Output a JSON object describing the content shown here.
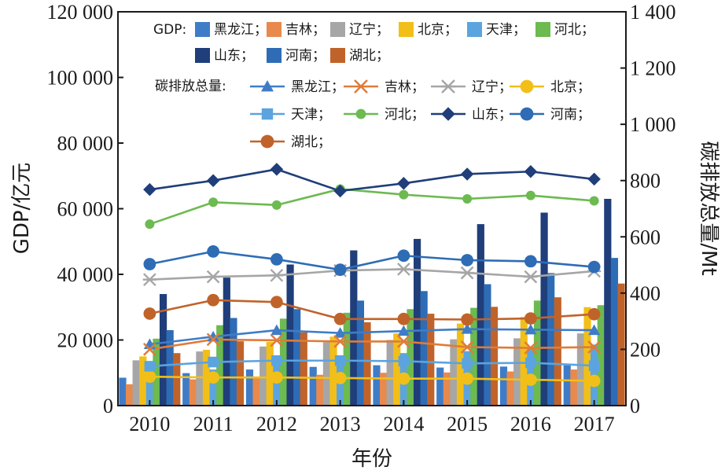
{
  "chart_data": {
    "type": "bar",
    "categories": [
      "2010",
      "2011",
      "2012",
      "2013",
      "2014",
      "2015",
      "2016",
      "2017"
    ],
    "xlabel": "年份",
    "ylabel": "GDP/亿元",
    "y2label": "碳排放总量/Mt",
    "ylim": [
      0,
      120000
    ],
    "y2lim": [
      0,
      1400
    ],
    "yticks": [
      {
        "value": 0,
        "label": "0"
      },
      {
        "value": 20000,
        "label": "20 000"
      },
      {
        "value": 40000,
        "label": "40 000"
      },
      {
        "value": 60000,
        "label": "60 000"
      },
      {
        "value": 80000,
        "label": "80 000"
      },
      {
        "value": 100000,
        "label": "100 000"
      },
      {
        "value": 120000,
        "label": "120 000"
      }
    ],
    "y2ticks": [
      {
        "value": 0,
        "label": "0"
      },
      {
        "value": 200,
        "label": "200"
      },
      {
        "value": 400,
        "label": "400"
      },
      {
        "value": 600,
        "label": "600"
      },
      {
        "value": 800,
        "label": "800"
      },
      {
        "value": 1000,
        "label": "1 000"
      },
      {
        "value": 1200,
        "label": "1 200"
      },
      {
        "value": 1400,
        "label": "1 400"
      }
    ],
    "legend_gdp_prefix": "GDP:",
    "legend_co2_prefix": "碳排放总量:",
    "grid": false,
    "bar_series": [
      {
        "name": "黑龙江；",
        "color": "#3f7cc8",
        "values": [
          8500,
          9900,
          11000,
          11800,
          12300,
          11600,
          11900,
          12300
        ]
      },
      {
        "name": "吉林；",
        "color": "#e8894d",
        "values": [
          6500,
          8000,
          8800,
          9400,
          10000,
          10100,
          10400,
          11000
        ]
      },
      {
        "name": "辽宁；",
        "color": "#a6a6a6",
        "values": [
          13800,
          16500,
          18000,
          19300,
          20000,
          20200,
          20500,
          22000
        ]
      },
      {
        "name": "北京；",
        "color": "#f2bf18",
        "values": [
          15000,
          17000,
          19400,
          21000,
          22000,
          25000,
          27000,
          30000
        ]
      },
      {
        "name": "天津；",
        "color": "#5ba4df",
        "values": [
          9000,
          11000,
          13000,
          14500,
          16000,
          16600,
          17900,
          18600
        ]
      },
      {
        "name": "河北；",
        "color": "#6cba50",
        "values": [
          20400,
          24500,
          26500,
          28300,
          29400,
          29800,
          32000,
          30600
        ]
      },
      {
        "name": "山东；",
        "color": "#1f3e7a",
        "values": [
          34000,
          39000,
          43000,
          47300,
          50800,
          55300,
          58800,
          63000
        ]
      },
      {
        "name": "河南；",
        "color": "#2e6cb5",
        "values": [
          23000,
          26700,
          29400,
          32000,
          34900,
          37000,
          40400,
          45000
        ]
      },
      {
        "name": "湖北；",
        "color": "#c0632a",
        "values": [
          16000,
          19600,
          22300,
          25400,
          28000,
          30100,
          33000,
          37200
        ]
      }
    ],
    "line_series": [
      {
        "name": "黑龙江；",
        "color": "#3f7cc8",
        "marker": "triangle",
        "values": [
          218,
          245,
          268,
          258,
          265,
          272,
          270,
          268
        ]
      },
      {
        "name": "吉林；",
        "color": "#e07b39",
        "marker": "x",
        "values": [
          200,
          235,
          232,
          228,
          228,
          208,
          205,
          208
        ]
      },
      {
        "name": "辽宁；",
        "color": "#a6a6a6",
        "marker": "asterisk",
        "values": [
          448,
          458,
          463,
          480,
          485,
          472,
          458,
          478
        ]
      },
      {
        "name": "北京；",
        "color": "#f2bf18",
        "marker": "circle",
        "values": [
          103,
          100,
          100,
          98,
          96,
          96,
          92,
          88
        ]
      },
      {
        "name": "天津；",
        "color": "#5ba4df",
        "marker": "square",
        "values": [
          140,
          155,
          160,
          160,
          158,
          150,
          152,
          142
        ]
      },
      {
        "name": "河北；",
        "color": "#6cba50",
        "marker": "dot",
        "values": [
          645,
          723,
          713,
          770,
          750,
          735,
          747,
          728
        ]
      },
      {
        "name": "山东；",
        "color": "#1f3e7a",
        "marker": "diamond",
        "values": [
          768,
          800,
          840,
          763,
          790,
          823,
          832,
          805
        ]
      },
      {
        "name": "河南；",
        "color": "#2e6cb5",
        "marker": "circle",
        "values": [
          503,
          548,
          520,
          483,
          533,
          517,
          513,
          493
        ]
      },
      {
        "name": "湖北；",
        "color": "#c0632a",
        "marker": "circle",
        "values": [
          327,
          375,
          368,
          308,
          308,
          306,
          310,
          325
        ]
      }
    ]
  }
}
